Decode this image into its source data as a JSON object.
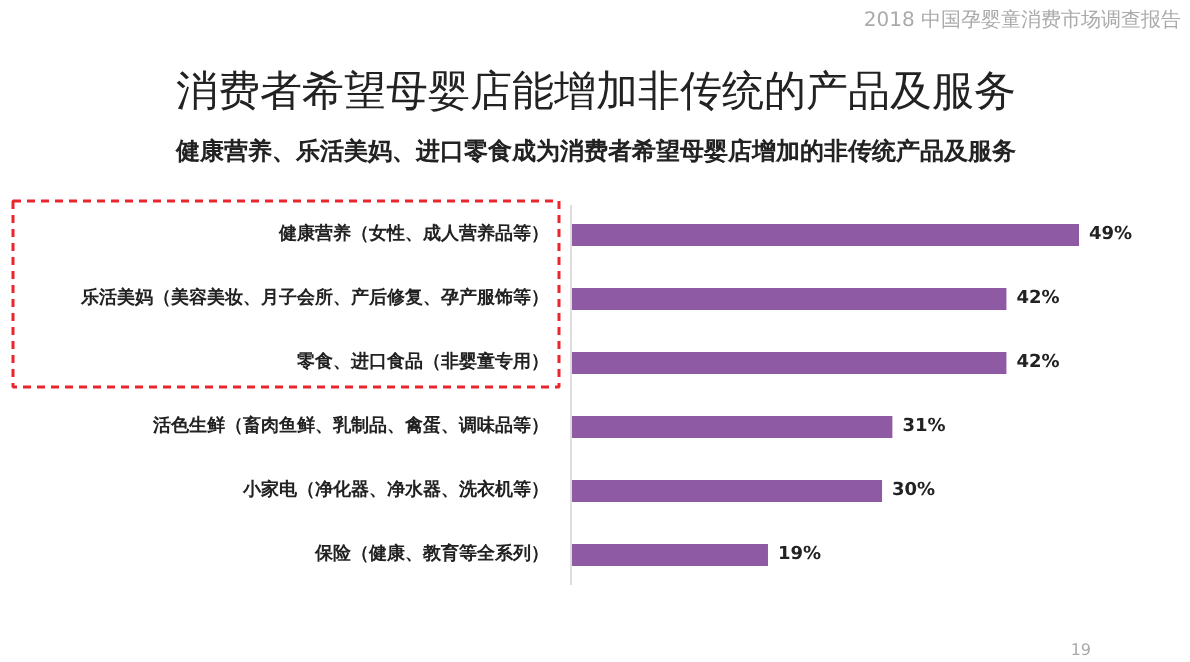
{
  "chart_data": {
    "type": "bar",
    "orientation": "horizontal",
    "title": "消费者希望母婴店能增加非传统的产品及服务",
    "subtitle": "健康营养、乐活美妈、进口零食成为消费者希望母婴店增加的非传统产品及服务",
    "categories": [
      "健康营养（女性、成人营养品等）",
      "乐活美妈（美容美妆、月子会所、产后修复、孕产服饰等）",
      "零食、进口食品（非婴童专用）",
      "活色生鲜（畜肉鱼鲜、乳制品、禽蛋、调味品等）",
      "小家电（净化器、净水器、洗衣机等）",
      "保险（健康、教育等全系列）"
    ],
    "values": [
      49,
      42,
      42,
      31,
      30,
      19
    ],
    "value_labels": [
      "49%",
      "42%",
      "42%",
      "31%",
      "30%",
      "19%"
    ],
    "color": "#8e5aa3",
    "annotations": [
      "2018 中国孕婴童消费市场调查报告",
      "19"
    ]
  }
}
